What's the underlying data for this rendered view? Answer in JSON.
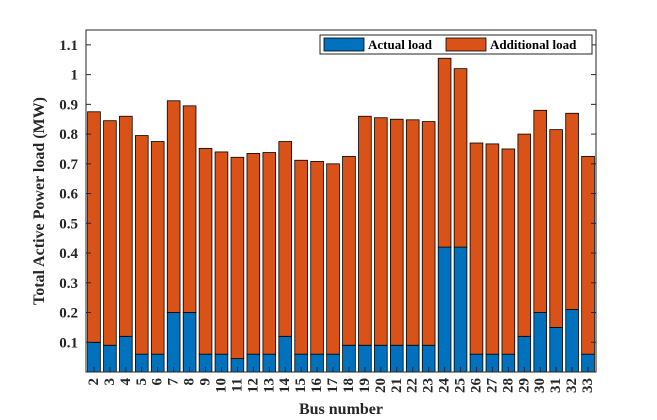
{
  "chart_data": {
    "type": "bar",
    "stacked": true,
    "xlabel": "Bus number",
    "ylabel": "Total Active Power load (MW)",
    "categories": [
      "2",
      "3",
      "4",
      "5",
      "6",
      "7",
      "8",
      "9",
      "10",
      "11",
      "12",
      "13",
      "14",
      "15",
      "16",
      "17",
      "18",
      "19",
      "20",
      "21",
      "22",
      "23",
      "24",
      "25",
      "26",
      "27",
      "28",
      "29",
      "30",
      "31",
      "32",
      "33"
    ],
    "series": [
      {
        "name": "Actual load",
        "color": "#0072BD",
        "values": [
          0.1,
          0.09,
          0.12,
          0.06,
          0.06,
          0.2,
          0.2,
          0.06,
          0.06,
          0.045,
          0.06,
          0.06,
          0.12,
          0.06,
          0.06,
          0.06,
          0.09,
          0.09,
          0.09,
          0.09,
          0.09,
          0.09,
          0.42,
          0.42,
          0.06,
          0.06,
          0.06,
          0.12,
          0.2,
          0.15,
          0.21,
          0.06
        ]
      },
      {
        "name": "Additional load",
        "color": "#D95319",
        "values": [
          0.775,
          0.755,
          0.74,
          0.735,
          0.715,
          0.712,
          0.695,
          0.692,
          0.68,
          0.677,
          0.675,
          0.678,
          0.655,
          0.652,
          0.648,
          0.64,
          0.635,
          0.77,
          0.765,
          0.76,
          0.758,
          0.752,
          0.635,
          0.6,
          0.71,
          0.707,
          0.69,
          0.68,
          0.68,
          0.665,
          0.66,
          0.665
        ]
      }
    ],
    "ylim": [
      0,
      1.15
    ],
    "yticks": [
      0.1,
      0.2,
      0.3,
      0.4,
      0.5,
      0.6,
      0.7,
      0.8,
      0.9,
      1,
      1.1
    ],
    "ytick_labels": [
      "0.1",
      "0.2",
      "0.3",
      "0.4",
      "0.5",
      "0.6",
      "0.7",
      "0.8",
      "0.9",
      "1",
      "1.1"
    ],
    "grid": false,
    "legend_position": "top-right",
    "legend_orientation": "horizontal"
  }
}
